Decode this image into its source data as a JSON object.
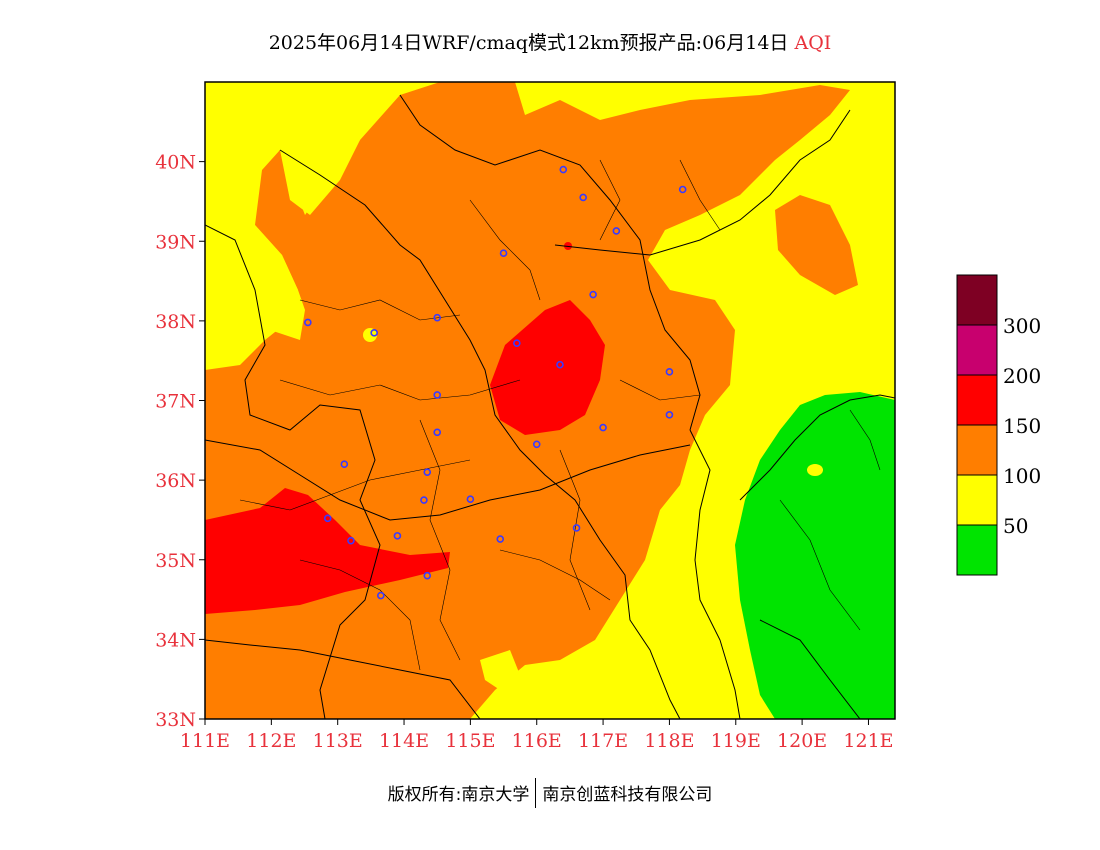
{
  "title": {
    "main": "2025年06月14日WRF/cmaq模式12km预报产品:06月14日",
    "variable": "AQI"
  },
  "map": {
    "lon_range": [
      111,
      121.4
    ],
    "lat_range": [
      33,
      41
    ],
    "lat_ticks": [
      {
        "value": 33,
        "label": "33N"
      },
      {
        "value": 34,
        "label": "34N"
      },
      {
        "value": 35,
        "label": "35N"
      },
      {
        "value": 36,
        "label": "36N"
      },
      {
        "value": 37,
        "label": "37N"
      },
      {
        "value": 38,
        "label": "38N"
      },
      {
        "value": 39,
        "label": "39N"
      },
      {
        "value": 40,
        "label": "40N"
      }
    ],
    "lon_ticks": [
      {
        "value": 111,
        "label": "111E"
      },
      {
        "value": 112,
        "label": "112E"
      },
      {
        "value": 113,
        "label": "113E"
      },
      {
        "value": 114,
        "label": "114E"
      },
      {
        "value": 115,
        "label": "115E"
      },
      {
        "value": 116,
        "label": "116E"
      },
      {
        "value": 117,
        "label": "117E"
      },
      {
        "value": 118,
        "label": "118E"
      },
      {
        "value": 119,
        "label": "119E"
      },
      {
        "value": 120,
        "label": "120E"
      },
      {
        "value": 121,
        "label": "121E"
      }
    ],
    "tick_color": "#e8323c",
    "cities": [
      {
        "lon": 116.4,
        "lat": 39.9
      },
      {
        "lon": 116.7,
        "lat": 39.55
      },
      {
        "lon": 118.2,
        "lat": 39.65
      },
      {
        "lon": 117.2,
        "lat": 39.13
      },
      {
        "lon": 115.5,
        "lat": 38.85
      },
      {
        "lon": 116.85,
        "lat": 38.33
      },
      {
        "lon": 112.55,
        "lat": 37.98
      },
      {
        "lon": 113.55,
        "lat": 37.85
      },
      {
        "lon": 114.5,
        "lat": 38.04
      },
      {
        "lon": 115.7,
        "lat": 37.72
      },
      {
        "lon": 116.35,
        "lat": 37.45
      },
      {
        "lon": 118.0,
        "lat": 37.36
      },
      {
        "lon": 114.5,
        "lat": 37.07
      },
      {
        "lon": 117.0,
        "lat": 36.66
      },
      {
        "lon": 118.0,
        "lat": 36.82
      },
      {
        "lon": 114.5,
        "lat": 36.6
      },
      {
        "lon": 116.0,
        "lat": 36.45
      },
      {
        "lon": 113.1,
        "lat": 36.2
      },
      {
        "lon": 114.35,
        "lat": 36.1
      },
      {
        "lon": 115.0,
        "lat": 35.76
      },
      {
        "lon": 114.3,
        "lat": 35.75
      },
      {
        "lon": 112.85,
        "lat": 35.52
      },
      {
        "lon": 113.2,
        "lat": 35.24
      },
      {
        "lon": 113.9,
        "lat": 35.3
      },
      {
        "lon": 115.45,
        "lat": 35.26
      },
      {
        "lon": 116.6,
        "lat": 35.4
      },
      {
        "lon": 114.35,
        "lat": 34.8
      },
      {
        "lon": 113.65,
        "lat": 34.55
      }
    ]
  },
  "legend": {
    "bins": [
      {
        "color": "#00e400",
        "label": "50"
      },
      {
        "color": "#ffff00",
        "label": "100"
      },
      {
        "color": "#ff7e00",
        "label": "150"
      },
      {
        "color": "#ff0000",
        "label": "200"
      },
      {
        "color": "#c8006e",
        "label": "300"
      },
      {
        "color": "#7e0023",
        "label": ""
      }
    ]
  },
  "footer": {
    "left": "版权所有:南京大学",
    "right": "南京创蓝科技有限公司"
  }
}
